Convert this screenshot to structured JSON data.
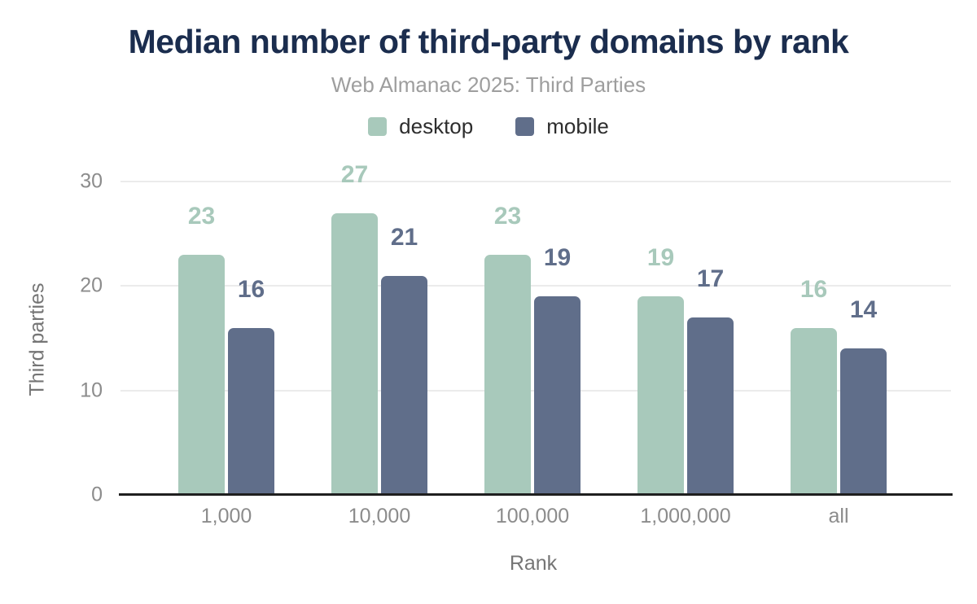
{
  "header": {
    "title": "Median number of third-party domains by rank",
    "subtitle": "Web Almanac 2025: Third Parties"
  },
  "chart_data": {
    "type": "bar",
    "title": "Median number of third-party domains by rank",
    "subtitle": "Web Almanac 2025: Third Parties",
    "categories": [
      "1,000",
      "10,000",
      "100,000",
      "1,000,000",
      "all"
    ],
    "series": [
      {
        "name": "desktop",
        "color": "#a8c9bb",
        "values": [
          23,
          27,
          23,
          19,
          16
        ]
      },
      {
        "name": "mobile",
        "color": "#606e8a",
        "values": [
          16,
          21,
          19,
          17,
          14
        ]
      }
    ],
    "xlabel": "Rank",
    "ylabel": "Third parties",
    "ylim": [
      0,
      30
    ],
    "yticks": [
      0,
      10,
      20,
      30
    ],
    "grid": "horizontal",
    "legend_position": "top",
    "value_labels": true
  },
  "style": {
    "background": "#ffffff",
    "title_color": "#1b2d4e",
    "subtitle_color": "#9e9e9e",
    "legend_text_color": "#2d2d2d",
    "axis_tick_color": "#8c8c8c",
    "axis_title_color": "#757575",
    "grid_color": "#ebebeb",
    "axis_line_color": "#1f1f1f",
    "desktop_color": "#a8c9bb",
    "mobile_color": "#606e8a"
  }
}
